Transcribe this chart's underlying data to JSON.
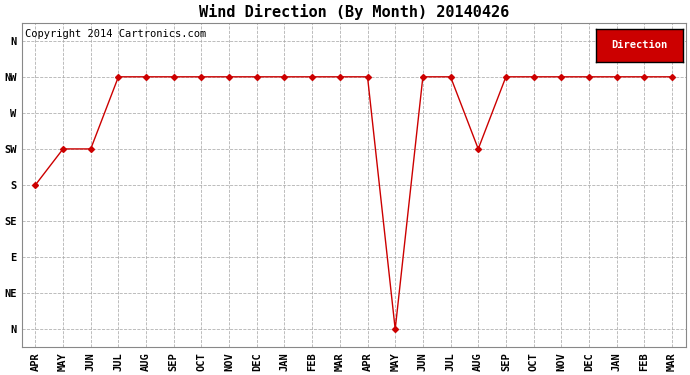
{
  "title": "Wind Direction (By Month) 20140426",
  "copyright": "Copyright 2014 Cartronics.com",
  "legend_label": "Direction",
  "legend_bg": "#cc0000",
  "legend_text_color": "#ffffff",
  "background_color": "#ffffff",
  "plot_bg": "#ffffff",
  "line_color": "#cc0000",
  "marker": "D",
  "marker_size": 3,
  "x_labels": [
    "APR",
    "MAY",
    "JUN",
    "JUL",
    "AUG",
    "SEP",
    "OCT",
    "NOV",
    "DEC",
    "JAN",
    "FEB",
    "MAR",
    "APR",
    "MAY",
    "JUN",
    "JUL",
    "AUG",
    "SEP",
    "OCT",
    "NOV",
    "DEC",
    "JAN",
    "FEB",
    "MAR"
  ],
  "y_labels_display": [
    "N",
    "NW",
    "W",
    "SW",
    "S",
    "SE",
    "E",
    "NE",
    "N"
  ],
  "y_tick_positions": [
    8,
    7,
    6,
    5,
    4,
    3,
    2,
    1,
    0
  ],
  "data_points": [
    4,
    5,
    5,
    7,
    7,
    7,
    7,
    7,
    7,
    7,
    7,
    7,
    7,
    0,
    7,
    7,
    5,
    7,
    7,
    7,
    7,
    7,
    7,
    7
  ],
  "title_fontsize": 11,
  "tick_fontsize": 7.5,
  "copyright_fontsize": 7.5
}
